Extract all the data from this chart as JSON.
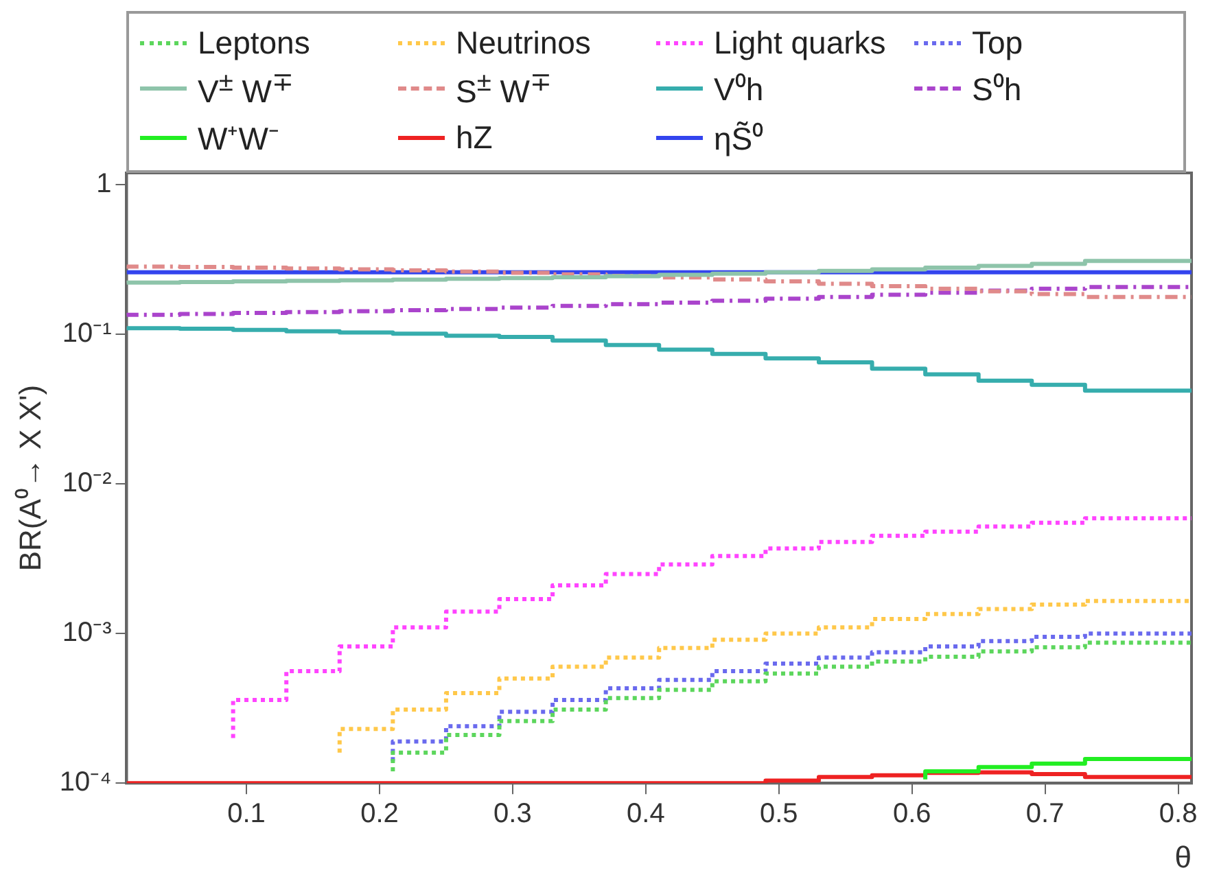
{
  "chart_data": {
    "type": "step",
    "xlabel": "θ",
    "ylabel": "BR(A⁰→ X X')",
    "log": "y",
    "grid": false,
    "legend": "top",
    "marker": "none",
    "xlim": [
      0.01,
      0.81
    ],
    "xticks": [
      0.1,
      0.2,
      0.3,
      0.4,
      0.5,
      0.6,
      0.7,
      0.8
    ],
    "ylim": [
      0.0001,
      1.2
    ],
    "yticks": [
      {
        "value": 0.0001,
        "label": "10⁻⁴"
      },
      {
        "value": 0.001,
        "label": "10⁻³"
      },
      {
        "value": 0.01,
        "label": "10⁻²"
      },
      {
        "value": 0.1,
        "label": "10⁻¹"
      },
      1
    ],
    "x": [
      0.01,
      0.05,
      0.09,
      0.13,
      0.17,
      0.21,
      0.25,
      0.29,
      0.33,
      0.37,
      0.41,
      0.45,
      0.49,
      0.53,
      0.57,
      0.61,
      0.65,
      0.69,
      0.73,
      0.77,
      0.81
    ],
    "series": [
      {
        "name": "Leptons",
        "color": "#5cd65c",
        "line_style": "dotted",
        "values": [
          null,
          null,
          null,
          null,
          null,
          0.00012,
          0.00016,
          0.00021,
          0.00026,
          0.00031,
          0.00037,
          0.00042,
          0.00048,
          0.00054,
          0.0006,
          0.00065,
          0.0007,
          0.00076,
          0.00081,
          0.00087,
          0.00087
        ]
      },
      {
        "name": "Neutrinos",
        "color": "#ffc84a",
        "line_style": "dotted",
        "values": [
          null,
          null,
          null,
          null,
          0.00016,
          0.00023,
          0.00031,
          0.0004,
          0.0005,
          0.0006,
          0.00069,
          0.0008,
          0.00091,
          0.001,
          0.0011,
          0.00125,
          0.00135,
          0.00146,
          0.00156,
          0.00165,
          0.00165
        ]
      },
      {
        "name": "Light quarks",
        "color": "#ff44ff",
        "line_style": "dotted",
        "values": [
          null,
          null,
          0.0002,
          0.00036,
          0.00056,
          0.00082,
          0.0011,
          0.0014,
          0.0017,
          0.0021,
          0.0025,
          0.0029,
          0.0033,
          0.0037,
          0.0041,
          0.0045,
          0.0048,
          0.0052,
          0.0055,
          0.0059,
          0.0059
        ]
      },
      {
        "name": "Top",
        "color": "#6a6aee",
        "line_style": "dotted",
        "values": [
          null,
          null,
          null,
          null,
          null,
          0.00014,
          0.00019,
          0.00024,
          0.0003,
          0.00036,
          0.00043,
          0.00049,
          0.00056,
          0.00063,
          0.00069,
          0.00075,
          0.00082,
          0.00089,
          0.00095,
          0.001,
          0.001
        ]
      },
      {
        "name": "V$^{±}$ W$^{∓}$",
        "color": "#8ec4aa",
        "line_style": "solid",
        "values": [
          0.22,
          0.222,
          0.224,
          0.226,
          0.228,
          0.23,
          0.232,
          0.235,
          0.238,
          0.241,
          0.245,
          0.25,
          0.255,
          0.26,
          0.266,
          0.272,
          0.279,
          0.287,
          0.296,
          0.31,
          0.31
        ]
      },
      {
        "name": "S$^{±}$ W$^{∓}$",
        "color": "#e08a8a",
        "line_style": "dashed",
        "values": [
          0.286,
          0.284,
          0.282,
          0.279,
          0.276,
          0.272,
          0.268,
          0.263,
          0.258,
          0.252,
          0.246,
          0.24,
          0.233,
          0.226,
          0.218,
          0.21,
          0.202,
          0.194,
          0.186,
          0.178,
          0.178
        ]
      },
      {
        "name": "V⁰h",
        "color": "#36adad",
        "line_style": "solid",
        "values": [
          0.111,
          0.11,
          0.109,
          0.107,
          0.105,
          0.103,
          0.101,
          0.098,
          0.096,
          0.091,
          0.085,
          0.079,
          0.074,
          0.069,
          0.065,
          0.059,
          0.054,
          0.049,
          0.046,
          0.042,
          0.042
        ]
      },
      {
        "name": "S⁰h",
        "color": "#aa44cc",
        "line_style": "dashed",
        "values": [
          0.134,
          0.135,
          0.137,
          0.139,
          0.141,
          0.143,
          0.145,
          0.148,
          0.151,
          0.155,
          0.159,
          0.163,
          0.168,
          0.173,
          0.178,
          0.184,
          0.19,
          0.196,
          0.202,
          0.207,
          0.207
        ]
      },
      {
        "name": "W⁺W⁻",
        "color": "#22ee22",
        "line_style": "solid",
        "values": [
          null,
          null,
          null,
          null,
          null,
          null,
          null,
          null,
          null,
          null,
          null,
          null,
          null,
          null,
          null,
          0.000106,
          0.00012,
          0.000128,
          0.000135,
          0.000145,
          0.000145
        ]
      },
      {
        "name": "hZ",
        "color": "#ee2222",
        "line_style": "solid",
        "values": [
          0.0001,
          0.0001,
          0.0001,
          0.0001,
          0.0001,
          0.0001,
          0.0001,
          0.0001,
          0.0001,
          0.0001,
          0.0001,
          0.0001,
          0.0001,
          0.000104,
          0.00011,
          0.000113,
          0.000117,
          0.000118,
          0.000115,
          0.00011,
          0.00011
        ]
      },
      {
        "name": "ηS̃⁰",
        "color": "#3344ee",
        "line_style": "solid",
        "values": [
          0.26,
          0.26,
          0.26,
          0.26,
          0.26,
          0.26,
          0.26,
          0.26,
          0.26,
          0.26,
          0.26,
          0.26,
          0.26,
          0.26,
          0.26,
          0.26,
          0.26,
          0.26,
          0.26,
          0.26,
          0.26
        ]
      }
    ]
  }
}
